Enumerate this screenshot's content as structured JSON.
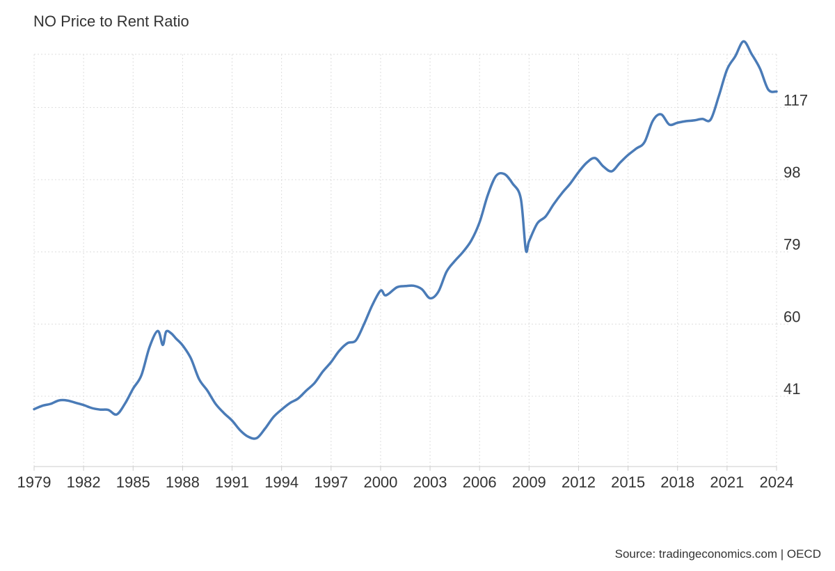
{
  "chart_data": {
    "type": "line",
    "title": "NO Price to Rent Ratio",
    "source": "Source: tradingeconomics.com | OECD",
    "xlabel": "",
    "ylabel": "",
    "xlim": [
      1979,
      2024
    ],
    "ylim": [
      22.5,
      131
    ],
    "x_ticks": [
      "1979",
      "1982",
      "1985",
      "1988",
      "1991",
      "1994",
      "1997",
      "2000",
      "2003",
      "2006",
      "2009",
      "2012",
      "2015",
      "2018",
      "2021",
      "2024"
    ],
    "y_ticks": [
      41,
      60,
      79,
      98,
      117
    ],
    "y_axis_side": "right",
    "grid": true,
    "line_color": "#4a7bb7",
    "series": [
      {
        "x": [
          1979.0,
          1979.5,
          1980.0,
          1980.5,
          1981.0,
          1981.5,
          1982.0,
          1982.5,
          1983.0,
          1983.5,
          1984.0,
          1984.5,
          1985.0,
          1985.5,
          1986.0,
          1986.5,
          1986.8,
          1987.0,
          1987.3,
          1987.6,
          1988.0,
          1988.5,
          1989.0,
          1989.5,
          1990.0,
          1990.5,
          1991.0,
          1991.5,
          1992.0,
          1992.5,
          1993.0,
          1993.5,
          1994.0,
          1994.5,
          1995.0,
          1995.5,
          1996.0,
          1996.5,
          1997.0,
          1997.5,
          1998.0,
          1998.5,
          1999.0,
          1999.5,
          2000.0,
          2000.25,
          2000.5,
          2001.0,
          2001.5,
          2002.0,
          2002.5,
          2003.0,
          2003.5,
          2004.0,
          2004.5,
          2005.0,
          2005.5,
          2006.0,
          2006.5,
          2007.0,
          2007.5,
          2008.0,
          2008.5,
          2008.8,
          2009.0,
          2009.5,
          2010.0,
          2010.5,
          2011.0,
          2011.5,
          2012.0,
          2012.5,
          2013.0,
          2013.5,
          2014.0,
          2014.5,
          2015.0,
          2015.5,
          2016.0,
          2016.5,
          2017.0,
          2017.5,
          2018.0,
          2018.5,
          2019.0,
          2019.5,
          2020.0,
          2020.5,
          2021.0,
          2021.5,
          2022.0,
          2022.5,
          2023.0,
          2023.5,
          2024.0
        ],
        "values": [
          37.6,
          38.5,
          39.0,
          39.9,
          39.9,
          39.3,
          38.7,
          37.9,
          37.5,
          37.4,
          36.2,
          39.0,
          43.0,
          46.5,
          54.0,
          58.2,
          54.5,
          58.0,
          57.6,
          56.2,
          54.4,
          51.0,
          45.5,
          42.5,
          39.0,
          36.6,
          34.6,
          32.0,
          30.3,
          30.0,
          32.5,
          35.5,
          37.5,
          39.2,
          40.4,
          42.5,
          44.5,
          47.5,
          50.0,
          53.0,
          55.0,
          55.7,
          60.0,
          65.0,
          68.8,
          67.6,
          68.0,
          69.7,
          70.0,
          70.1,
          69.2,
          66.8,
          68.5,
          73.8,
          76.6,
          79.0,
          82.0,
          86.8,
          94.0,
          99.0,
          99.5,
          97.0,
          93.0,
          79.6,
          81.8,
          86.5,
          88.3,
          91.6,
          94.5,
          97.0,
          100.0,
          102.5,
          103.7,
          101.5,
          100.2,
          102.4,
          104.5,
          106.2,
          107.9,
          113.5,
          115.2,
          112.5,
          113.0,
          113.4,
          113.6,
          114.0,
          113.8,
          120.0,
          127.0,
          130.5,
          134.4,
          131.0,
          127.2,
          121.7,
          121.2
        ]
      }
    ]
  }
}
